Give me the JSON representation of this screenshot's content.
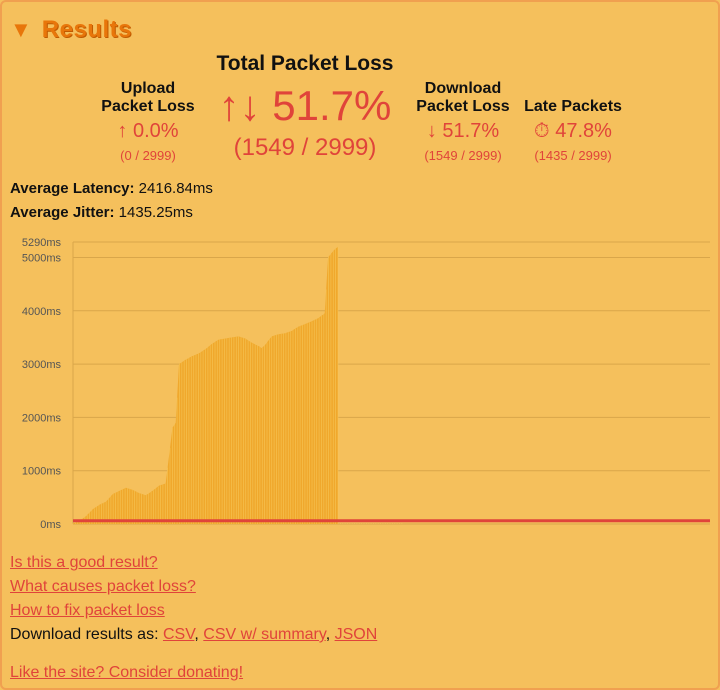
{
  "header": {
    "toggle_glyph": "▼",
    "title": "Results"
  },
  "upload": {
    "label_line1": "Upload",
    "label_line2": "Packet Loss",
    "icon": "↑",
    "value": "0.0%",
    "sub": "(0 / 2999)"
  },
  "total": {
    "label": "Total Packet Loss",
    "icon": "↑↓",
    "value": "51.7%",
    "sub": "(1549 / 2999)"
  },
  "download": {
    "label_line1": "Download",
    "label_line2": "Packet Loss",
    "icon": "↓",
    "value": "51.7%",
    "sub": "(1549 / 2999)"
  },
  "late": {
    "label": "Late Packets",
    "icon": "⏱",
    "value": "47.8%",
    "sub": "(1435 / 2999)"
  },
  "stats": {
    "latency_label": "Average Latency:",
    "latency_value": "2416.84ms",
    "jitter_label": "Average Jitter:",
    "jitter_value": "1435.25ms"
  },
  "links": {
    "good_result": "Is this a good result?",
    "causes": "What causes packet loss?",
    "fix": "How to fix packet loss",
    "download_prefix": "Download results as:",
    "csv": "CSV",
    "csv_summary": "CSV w/ summary",
    "json": "JSON",
    "donate": "Like the site? Consider donating!"
  },
  "colors": {
    "background": "#f5c05c",
    "accent": "#e8760a",
    "loss": "#e0443a",
    "area": "#f0a82c"
  },
  "chart_data": {
    "type": "area",
    "ylabel": "",
    "xlabel": "",
    "ylim": [
      0,
      5290
    ],
    "ytick_labels": [
      "5290ms",
      "5000ms",
      "4000ms",
      "3000ms",
      "2000ms",
      "1000ms",
      "0ms"
    ],
    "yticks": [
      5290,
      5000,
      4000,
      3000,
      2000,
      1000,
      0
    ],
    "x_fraction_end": 0.52,
    "series": [
      {
        "points": [
          [
            0,
            10
          ],
          [
            0.02,
            60
          ],
          [
            0.04,
            150
          ],
          [
            0.06,
            280
          ],
          [
            0.08,
            360
          ],
          [
            0.1,
            420
          ],
          [
            0.12,
            560
          ],
          [
            0.14,
            620
          ],
          [
            0.16,
            680
          ],
          [
            0.18,
            640
          ],
          [
            0.2,
            580
          ],
          [
            0.22,
            540
          ],
          [
            0.24,
            620
          ],
          [
            0.26,
            720
          ],
          [
            0.28,
            760
          ],
          [
            0.3,
            1800
          ],
          [
            0.31,
            1900
          ],
          [
            0.32,
            3000
          ],
          [
            0.34,
            3080
          ],
          [
            0.36,
            3150
          ],
          [
            0.38,
            3200
          ],
          [
            0.4,
            3280
          ],
          [
            0.42,
            3380
          ],
          [
            0.44,
            3460
          ],
          [
            0.46,
            3480
          ],
          [
            0.48,
            3500
          ],
          [
            0.5,
            3520
          ],
          [
            0.52,
            3480
          ],
          [
            0.54,
            3400
          ],
          [
            0.56,
            3340
          ],
          [
            0.57,
            3300
          ],
          [
            0.58,
            3360
          ],
          [
            0.6,
            3520
          ],
          [
            0.62,
            3560
          ],
          [
            0.64,
            3580
          ],
          [
            0.66,
            3620
          ],
          [
            0.68,
            3700
          ],
          [
            0.7,
            3750
          ],
          [
            0.72,
            3800
          ],
          [
            0.74,
            3860
          ],
          [
            0.76,
            3950
          ],
          [
            0.77,
            5000
          ],
          [
            0.78,
            5080
          ],
          [
            0.79,
            5150
          ],
          [
            0.8,
            5200
          ]
        ]
      }
    ],
    "loss_line_value": 60
  }
}
